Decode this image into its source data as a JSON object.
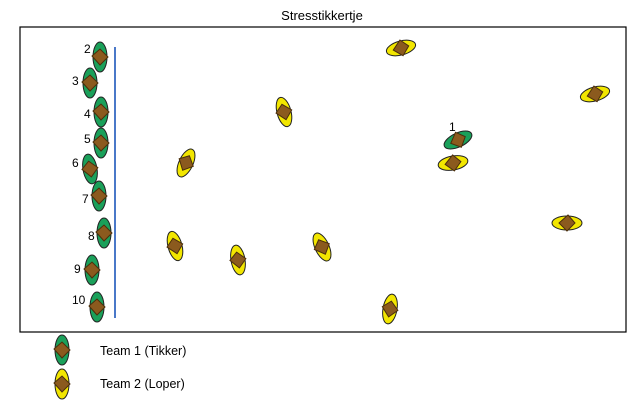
{
  "title": "Stresstikkertje",
  "colors": {
    "team1": "#1aa05a",
    "team2": "#f2e600",
    "head": "#8b5a1e",
    "headStroke": "#4a2e0b",
    "line": "#4a78c8",
    "border": "#000000"
  },
  "team1_numbers": [
    "2",
    "3",
    "4",
    "5",
    "6",
    "7",
    "8",
    "9",
    "10"
  ],
  "tikker_number": "1",
  "legend": [
    {
      "label": "Team 1 (Tikker)",
      "team": "team1"
    },
    {
      "label": "Team 2 (Loper)",
      "team": "team2"
    }
  ]
}
